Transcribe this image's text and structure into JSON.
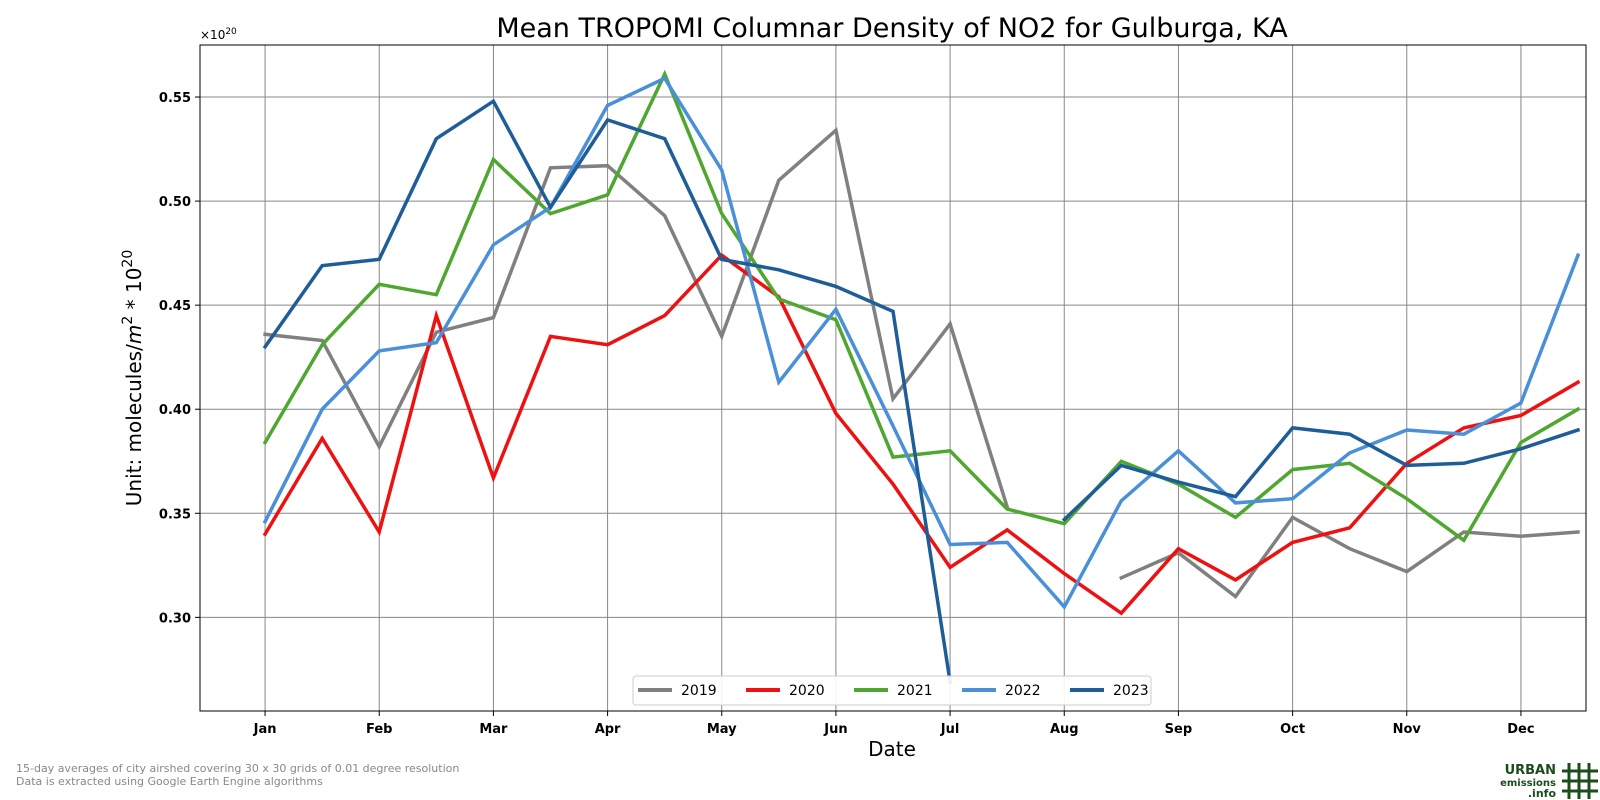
{
  "chart_data": {
    "type": "line",
    "title": "Mean TROPOMI Columnar Density of NO2 for Gulburga, KA",
    "xlabel": "Date",
    "ylabel_prefix": "Unit: molecules/",
    "ylabel_unit_base": "m",
    "ylabel_unit_exp": "2",
    "ylabel_mid": " * 10",
    "ylabel_exp": "20",
    "y_multiplier_base": "×10",
    "y_multiplier_exp": "20",
    "ylim": [
      0.255,
      0.575
    ],
    "yticks": [
      0.3,
      0.35,
      0.4,
      0.45,
      0.5,
      0.55
    ],
    "ytick_labels": [
      "0.30",
      "0.35",
      "0.40",
      "0.45",
      "0.50",
      "0.55"
    ],
    "xlim": [
      -0.57,
      11.57
    ],
    "xticks": [
      0,
      1,
      2,
      3,
      4,
      5,
      6,
      7,
      8,
      9,
      10,
      11
    ],
    "xtick_labels": [
      "Jan",
      "Feb",
      "Mar",
      "Apr",
      "May",
      "Jun",
      "Jul",
      "Aug",
      "Sep",
      "Oct",
      "Nov",
      "Dec"
    ],
    "x": [
      0,
      0.5,
      1,
      1.5,
      2,
      2.5,
      3,
      3.5,
      4,
      4.5,
      5,
      5.5,
      6,
      6.5,
      7,
      7.5,
      8,
      8.5,
      9,
      9.5,
      10,
      10.5,
      11,
      11.5
    ],
    "grid": true,
    "legend_position": "bottom-center",
    "series": [
      {
        "name": "2019",
        "color": "#808080",
        "values": [
          0.436,
          0.433,
          0.382,
          0.437,
          0.444,
          0.516,
          0.517,
          0.493,
          0.435,
          0.51,
          0.534,
          0.405,
          0.441,
          0.353,
          null,
          0.319,
          0.331,
          0.31,
          0.348,
          0.333,
          0.322,
          0.341,
          0.339,
          0.341
        ]
      },
      {
        "name": "2020",
        "color": "#ee1111",
        "values": [
          0.34,
          0.386,
          0.341,
          0.445,
          0.367,
          0.435,
          0.431,
          0.445,
          0.474,
          0.454,
          0.398,
          0.364,
          0.324,
          0.342,
          0.321,
          0.302,
          0.333,
          0.318,
          0.336,
          0.343,
          0.374,
          0.391,
          0.397,
          0.413
        ]
      },
      {
        "name": "2021",
        "color": "#4ea72e",
        "values": [
          0.384,
          0.431,
          0.46,
          0.455,
          0.52,
          0.494,
          0.503,
          0.561,
          0.494,
          0.453,
          0.443,
          0.377,
          0.38,
          0.352,
          0.345,
          0.375,
          0.364,
          0.348,
          0.371,
          0.374,
          0.357,
          0.337,
          0.384,
          0.4
        ]
      },
      {
        "name": "2022",
        "color": "#4a90d9",
        "values": [
          0.346,
          0.4,
          0.428,
          0.432,
          0.479,
          0.497,
          0.546,
          0.559,
          0.515,
          0.413,
          0.448,
          0.392,
          0.335,
          0.336,
          0.305,
          0.356,
          0.38,
          0.355,
          0.357,
          0.379,
          0.39,
          0.388,
          0.403,
          0.474
        ]
      },
      {
        "name": "2023",
        "color": "#1f5d99",
        "values": [
          0.43,
          0.469,
          0.472,
          0.53,
          0.548,
          0.497,
          0.539,
          0.53,
          0.472,
          0.467,
          0.459,
          0.447,
          0.269,
          null,
          0.347,
          0.373,
          0.365,
          0.358,
          0.391,
          0.388,
          0.373,
          0.374,
          0.381,
          0.39
        ]
      }
    ]
  },
  "footnote": {
    "line1": "15-day averages of city airshed covering 30 x 30 grids of 0.01 degree resolution",
    "line2": "Data is extracted using Google Earth Engine algorithms"
  },
  "logo": {
    "word1": "URBAN",
    "word2": "emissions",
    "word3": ".info",
    "color": "#1b4d1b"
  }
}
